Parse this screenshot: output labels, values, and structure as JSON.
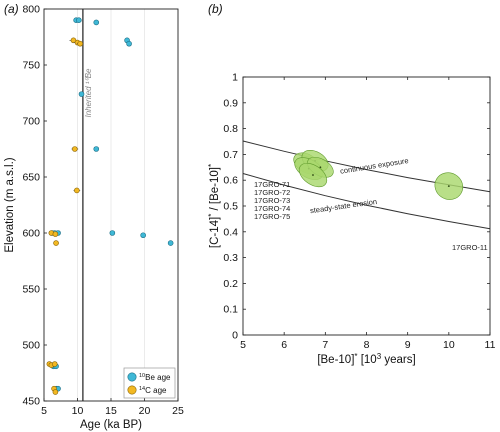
{
  "colors": {
    "be_fill": "#3fb8d6",
    "be_stroke": "#1d6f86",
    "c_fill": "#f2b822",
    "c_stroke": "#8a6508",
    "ellipse_fill": "#a9d86e",
    "ellipse_stroke": "#5f9a2c",
    "grid": "#e6e6e6",
    "axis": "#222222",
    "vline": "#555555",
    "inherited_text": "#888888"
  },
  "chart_data": [
    {
      "panel": "(a)",
      "type": "scatter",
      "xlabel": "Age (ka BP)",
      "ylabel": "Elevation (m a.s.l.)",
      "xlim": [
        5,
        25
      ],
      "ylim": [
        450,
        800
      ],
      "xticks": [
        5,
        10,
        15,
        20,
        25
      ],
      "yticks": [
        450,
        500,
        550,
        600,
        650,
        700,
        750,
        800
      ],
      "grid": "x",
      "vertical_line": {
        "x": 10.8,
        "label": "Inherited ¹⁰Be"
      },
      "legend": {
        "position": "bottom-right",
        "entries": [
          {
            "sup": "10",
            "text": "Be age",
            "series": "be"
          },
          {
            "sup": "14",
            "text": "C age",
            "series": "c"
          }
        ]
      },
      "series": [
        {
          "id": "be",
          "points": [
            {
              "x": 9.8,
              "y": 790,
              "err": 0.4
            },
            {
              "x": 10.2,
              "y": 790,
              "err": 0.4
            },
            {
              "x": 12.8,
              "y": 788,
              "err": 0.3
            },
            {
              "x": 17.4,
              "y": 772,
              "err": 0.3
            },
            {
              "x": 17.7,
              "y": 769,
              "err": 0.3
            },
            {
              "x": 10.6,
              "y": 724,
              "err": 0.3
            },
            {
              "x": 12.8,
              "y": 675,
              "err": 0.3
            },
            {
              "x": 6.2,
              "y": 600,
              "err": 0.3
            },
            {
              "x": 6.6,
              "y": 600,
              "err": 0.3
            },
            {
              "x": 7.1,
              "y": 600,
              "err": 0.3
            },
            {
              "x": 15.2,
              "y": 600,
              "err": 0.3
            },
            {
              "x": 19.8,
              "y": 598,
              "err": 0.3
            },
            {
              "x": 23.9,
              "y": 591,
              "err": 0.3
            },
            {
              "x": 6.4,
              "y": 481,
              "err": 0.3
            },
            {
              "x": 6.8,
              "y": 481,
              "err": 0.3
            },
            {
              "x": 6.9,
              "y": 461,
              "err": 0.3
            },
            {
              "x": 7.1,
              "y": 461,
              "err": 0.3
            }
          ]
        },
        {
          "id": "c",
          "points": [
            {
              "x": 9.4,
              "y": 772,
              "err": 0.6
            },
            {
              "x": 10.0,
              "y": 770,
              "err": 0.6
            },
            {
              "x": 10.4,
              "y": 769,
              "err": 0.5
            },
            {
              "x": 9.6,
              "y": 675,
              "err": 0.5
            },
            {
              "x": 9.9,
              "y": 638,
              "err": 0.5
            },
            {
              "x": 6.1,
              "y": 600,
              "err": 0.4
            },
            {
              "x": 6.7,
              "y": 599,
              "err": 0.4
            },
            {
              "x": 6.8,
              "y": 591,
              "err": 0.4
            },
            {
              "x": 5.8,
              "y": 483,
              "err": 0.3
            },
            {
              "x": 6.1,
              "y": 482,
              "err": 0.3
            },
            {
              "x": 6.6,
              "y": 483,
              "err": 0.3
            },
            {
              "x": 6.5,
              "y": 461,
              "err": 0.3
            },
            {
              "x": 6.7,
              "y": 458,
              "err": 0.3
            }
          ]
        }
      ]
    },
    {
      "panel": "(b)",
      "type": "scatter",
      "xlabel": "[Be-10]* [10³ years]",
      "ylabel": "[C-14]* / [Be-10]*",
      "xlim": [
        5,
        11
      ],
      "ylim": [
        0,
        1
      ],
      "xticks": [
        5,
        6,
        7,
        8,
        9,
        10,
        11
      ],
      "yticks": [
        0,
        0.1,
        0.2,
        0.3,
        0.4,
        0.5,
        0.6,
        0.7,
        0.8,
        0.9,
        1
      ],
      "grid": "none",
      "curves": [
        {
          "name": "continuous exposure",
          "x": [
            5,
            6,
            7,
            8,
            9,
            10,
            11
          ],
          "y": [
            0.752,
            0.712,
            0.675,
            0.641,
            0.61,
            0.582,
            0.555
          ]
        },
        {
          "name": "steady-state erosion",
          "x": [
            5,
            6,
            7,
            8,
            9,
            10,
            11
          ],
          "y": [
            0.626,
            0.581,
            0.54,
            0.503,
            0.47,
            0.44,
            0.412
          ]
        }
      ],
      "curve_labels": [
        {
          "text": "continuous exposure",
          "x": 8.2,
          "y": 0.646,
          "angle": -9
        },
        {
          "text": "steady-state erosion",
          "x": 7.45,
          "y": 0.49,
          "angle": -8
        }
      ],
      "samples": [
        {
          "name": "17GRO-71",
          "x": 6.55,
          "y": 0.665,
          "rx": 0.22,
          "ry": 0.055,
          "angle": -60
        },
        {
          "name": "17GRO-72",
          "x": 6.75,
          "y": 0.675,
          "rx": 0.22,
          "ry": 0.055,
          "angle": -60
        },
        {
          "name": "17GRO-73",
          "x": 6.6,
          "y": 0.645,
          "rx": 0.22,
          "ry": 0.06,
          "angle": -60
        },
        {
          "name": "17GRO-74",
          "x": 6.88,
          "y": 0.65,
          "rx": 0.2,
          "ry": 0.055,
          "angle": -60
        },
        {
          "name": "17GRO-75",
          "x": 6.7,
          "y": 0.62,
          "rx": 0.23,
          "ry": 0.06,
          "angle": -55
        },
        {
          "name": "17GRO-11",
          "x": 10.0,
          "y": 0.577,
          "rx": 0.32,
          "ry": 0.055,
          "angle": -60
        }
      ],
      "sample_labels_left": [
        "17GRO-71",
        "17GRO-72",
        "17GRO-73",
        "17GRO-74",
        "17GRO-75"
      ],
      "sample_label_right": "17GRO-11"
    }
  ]
}
